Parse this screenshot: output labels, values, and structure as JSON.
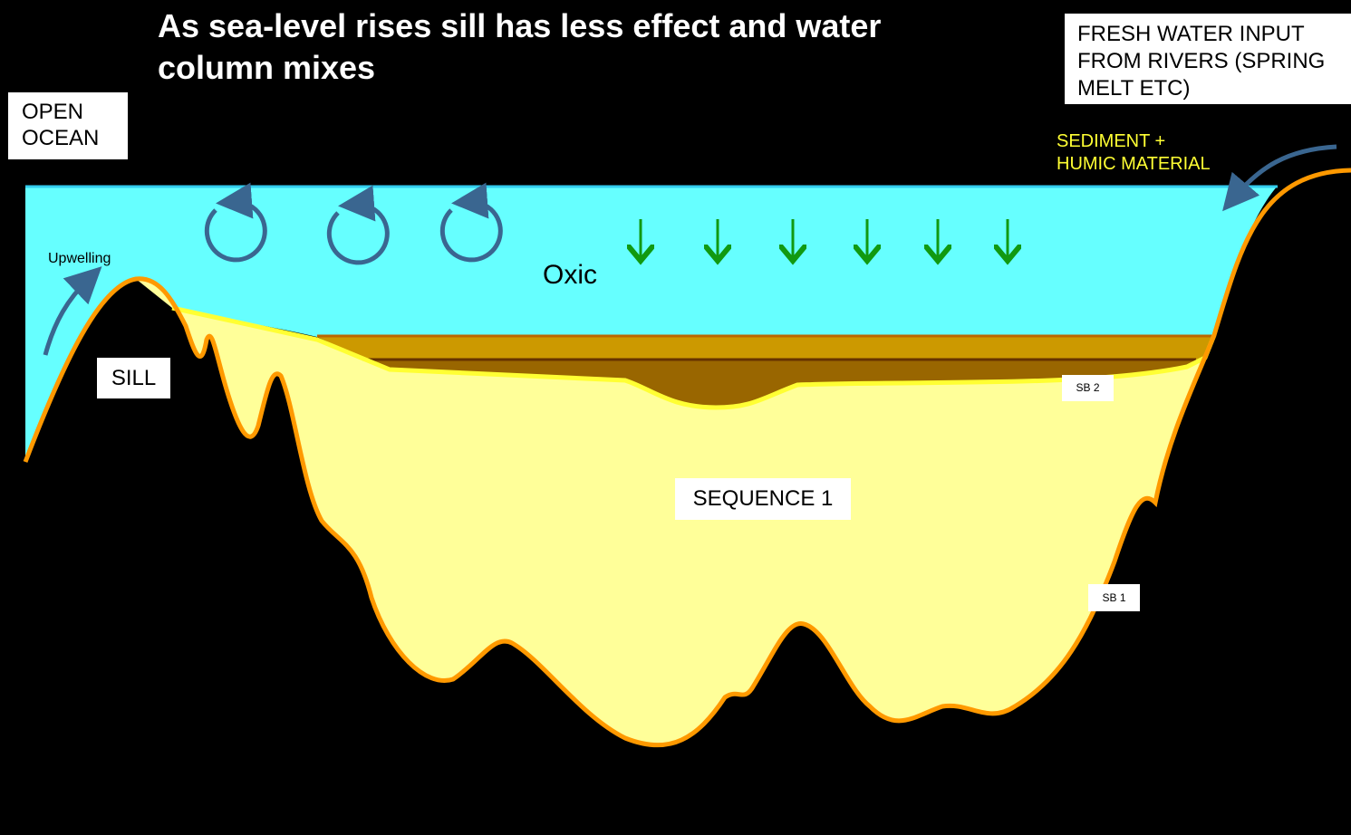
{
  "title": {
    "lines": [
      "As sea-level rises sill has less effect and water",
      "column mixes"
    ]
  },
  "labels": {
    "open_ocean": [
      "OPEN",
      "OCEAN"
    ],
    "fresh_water": [
      "FRESH WATER INPUT",
      "FROM RIVERS (SPRING",
      "MELT ETC)"
    ],
    "sediment": [
      "SEDIMENT +",
      "HUMIC MATERIAL"
    ],
    "upwelling": "Upwelling",
    "sill": "SILL",
    "oxic": "Oxic",
    "sb2": "SB 2",
    "sequence": "SEQUENCE 1",
    "sb1": "SB 1"
  }
}
